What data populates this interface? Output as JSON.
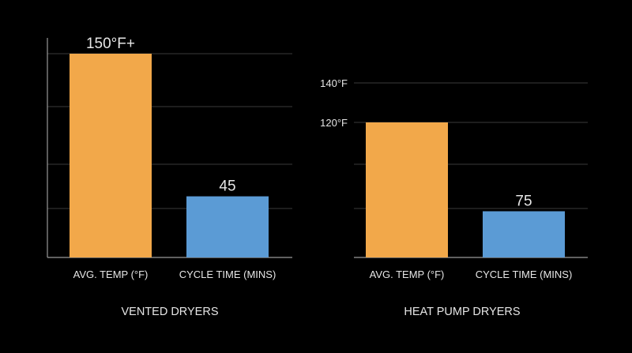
{
  "colors": {
    "background": "#000000",
    "temp_bar": "#F2A84A",
    "cycle_bar": "#5B9BD5",
    "gridline": "#3a3a3a",
    "axis": "#9a9a9a",
    "text": "#e6e6e6"
  },
  "chart_data": [
    {
      "type": "bar",
      "title": "VENTED DRYERS",
      "categories": [
        "AVG. TEMP (°F)",
        "CYCLE TIME (MINS)"
      ],
      "values": [
        150,
        45
      ],
      "data_labels": [
        "150°F+",
        "45"
      ],
      "tick_labels": [],
      "ylim": [
        0,
        150
      ],
      "grid": true,
      "axis_line": true
    },
    {
      "type": "bar",
      "title": "HEAT PUMP DRYERS",
      "categories": [
        "AVG. TEMP (°F)",
        "CYCLE TIME (MINS)"
      ],
      "values": [
        120,
        75
      ],
      "data_labels": [
        "",
        "75"
      ],
      "tick_labels": [
        "140°F",
        "120°F"
      ],
      "ylim": [
        0,
        150
      ],
      "grid": true,
      "axis_line": false
    }
  ]
}
